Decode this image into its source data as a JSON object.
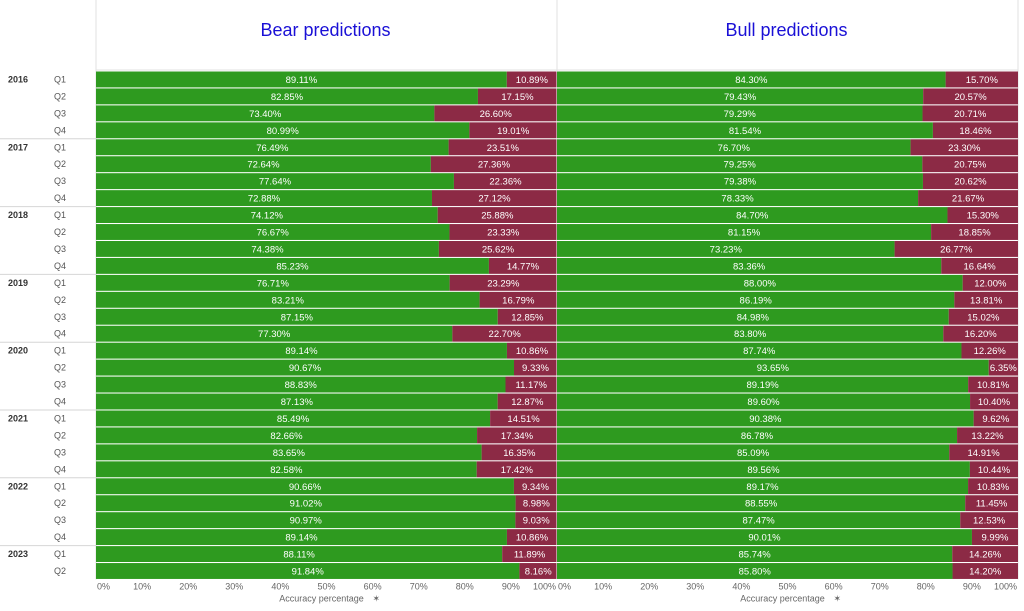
{
  "colors": {
    "correct": "#2e9a1f",
    "incorrect": "#8c2a45",
    "title": "#1a10d6",
    "grid": "#d9d9d9"
  },
  "chart_data": {
    "type": "bar",
    "orientation": "horizontal-stacked-100",
    "panels": [
      {
        "title": "Bear predictions",
        "correct": [
          89.11,
          82.85,
          73.4,
          80.99,
          76.49,
          72.64,
          77.64,
          72.88,
          74.12,
          76.67,
          74.38,
          85.23,
          76.71,
          83.21,
          87.15,
          77.3,
          89.14,
          90.67,
          88.83,
          87.13,
          85.49,
          82.66,
          83.65,
          82.58,
          90.66,
          91.02,
          90.97,
          89.14,
          88.11,
          91.84
        ],
        "incorrect": [
          10.89,
          17.15,
          26.6,
          19.01,
          23.51,
          27.36,
          22.36,
          27.12,
          25.88,
          23.33,
          25.62,
          14.77,
          23.29,
          16.79,
          12.85,
          22.7,
          10.86,
          9.33,
          11.17,
          12.87,
          14.51,
          17.34,
          16.35,
          17.42,
          9.34,
          8.98,
          9.03,
          10.86,
          11.89,
          8.16
        ]
      },
      {
        "title": "Bull predictions",
        "correct": [
          84.3,
          79.43,
          79.29,
          81.54,
          76.7,
          79.25,
          79.38,
          78.33,
          84.7,
          81.15,
          73.23,
          83.36,
          88.0,
          86.19,
          84.98,
          83.8,
          87.74,
          93.65,
          89.19,
          89.6,
          90.38,
          86.78,
          85.09,
          89.56,
          89.17,
          88.55,
          87.47,
          90.01,
          85.74,
          85.8
        ],
        "incorrect": [
          15.7,
          20.57,
          20.71,
          18.46,
          23.3,
          20.75,
          20.62,
          21.67,
          15.3,
          18.85,
          26.77,
          16.64,
          12.0,
          13.81,
          15.02,
          16.2,
          12.26,
          6.35,
          10.81,
          10.4,
          9.62,
          13.22,
          14.91,
          10.44,
          10.83,
          11.45,
          12.53,
          9.99,
          14.26,
          14.2
        ]
      }
    ],
    "rows": [
      {
        "year": "2016",
        "quarter": "Q1"
      },
      {
        "year": "2016",
        "quarter": "Q2"
      },
      {
        "year": "2016",
        "quarter": "Q3"
      },
      {
        "year": "2016",
        "quarter": "Q4"
      },
      {
        "year": "2017",
        "quarter": "Q1"
      },
      {
        "year": "2017",
        "quarter": "Q2"
      },
      {
        "year": "2017",
        "quarter": "Q3"
      },
      {
        "year": "2017",
        "quarter": "Q4"
      },
      {
        "year": "2018",
        "quarter": "Q1"
      },
      {
        "year": "2018",
        "quarter": "Q2"
      },
      {
        "year": "2018",
        "quarter": "Q3"
      },
      {
        "year": "2018",
        "quarter": "Q4"
      },
      {
        "year": "2019",
        "quarter": "Q1"
      },
      {
        "year": "2019",
        "quarter": "Q2"
      },
      {
        "year": "2019",
        "quarter": "Q3"
      },
      {
        "year": "2019",
        "quarter": "Q4"
      },
      {
        "year": "2020",
        "quarter": "Q1"
      },
      {
        "year": "2020",
        "quarter": "Q2"
      },
      {
        "year": "2020",
        "quarter": "Q3"
      },
      {
        "year": "2020",
        "quarter": "Q4"
      },
      {
        "year": "2021",
        "quarter": "Q1"
      },
      {
        "year": "2021",
        "quarter": "Q2"
      },
      {
        "year": "2021",
        "quarter": "Q3"
      },
      {
        "year": "2021",
        "quarter": "Q4"
      },
      {
        "year": "2022",
        "quarter": "Q1"
      },
      {
        "year": "2022",
        "quarter": "Q2"
      },
      {
        "year": "2022",
        "quarter": "Q3"
      },
      {
        "year": "2022",
        "quarter": "Q4"
      },
      {
        "year": "2023",
        "quarter": "Q1"
      },
      {
        "year": "2023",
        "quarter": "Q2"
      }
    ],
    "xlabel": "Accuracy percentage",
    "xticks": [
      "0%",
      "10%",
      "20%",
      "30%",
      "40%",
      "50%",
      "60%",
      "70%",
      "80%",
      "90%",
      "100%"
    ],
    "xlim": [
      0,
      100
    ],
    "grid": false,
    "legend": "none"
  }
}
